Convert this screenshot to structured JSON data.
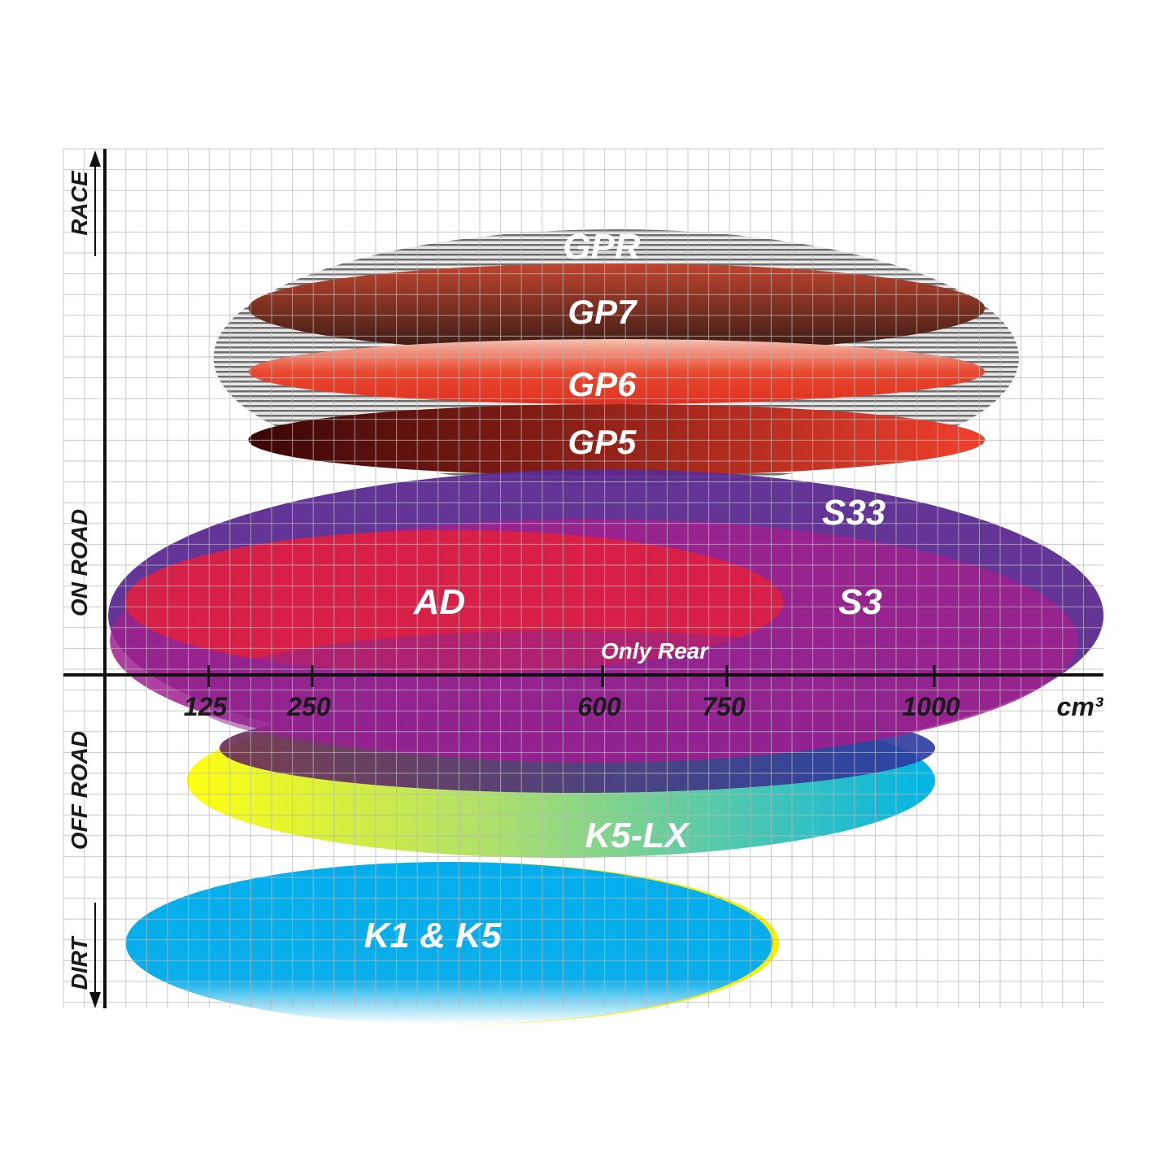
{
  "chart_data": {
    "type": "ellipse-positioning",
    "xlabel": "cm³",
    "x_ticks": [
      125,
      250,
      600,
      750,
      1000
    ],
    "x_tick_labels": [
      "125",
      "250",
      "600",
      "750",
      "1000"
    ],
    "y_labels": [
      "RACE",
      "ON ROAD",
      "OFF ROAD",
      "DIRT"
    ],
    "grid": true,
    "series": [
      {
        "name": "GPR",
        "x_range_cc": [
          131,
          1102
        ],
        "colors": [
          "#9a9a9a",
          "#ffffff"
        ]
      },
      {
        "name": "GP7",
        "x_range_cc": [
          173,
          1061
        ],
        "colors": [
          "#b8412e",
          "#3c1d16"
        ]
      },
      {
        "name": "GP6",
        "x_range_cc": [
          173,
          1061
        ],
        "colors": [
          "#f2b4a2",
          "#e23a26"
        ]
      },
      {
        "name": "GP5",
        "x_range_cc": [
          173,
          1061
        ],
        "colors": [
          "#3a0606",
          "#f0402c"
        ]
      },
      {
        "name": "S33",
        "x_range_cc": [
          4,
          1204
        ],
        "colors": [
          "#5b2a90"
        ]
      },
      {
        "name": "S3",
        "x_range_cc": [
          6,
          1173
        ],
        "colors": [
          "#a0208e"
        ]
      },
      {
        "name": "AD",
        "x_range_cc": [
          24,
          818
        ],
        "colors": [
          "#dc1f42"
        ]
      },
      {
        "name": "Only Rear",
        "x_range_cc": [
          99,
          1021
        ],
        "colors": [
          "#8e2590"
        ]
      },
      {
        "name": "K5-LX",
        "x_range_cc": [
          99,
          1001
        ],
        "colors": [
          "#ffff00",
          "#00b4e6"
        ]
      },
      {
        "name": "K1 & K5",
        "x_range_cc": [
          25,
          805
        ],
        "colors": [
          "#04aeed",
          "#ffffff"
        ]
      }
    ]
  }
}
